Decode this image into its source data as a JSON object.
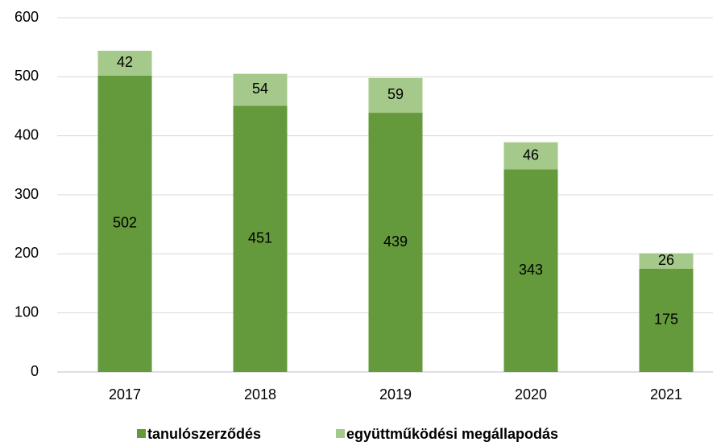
{
  "chart_data": {
    "type": "stacked_bar",
    "categories": [
      "2017",
      "2018",
      "2019",
      "2020",
      "2021"
    ],
    "series": [
      {
        "name": "tanulószerződés",
        "color": "#64993c",
        "values": [
          502,
          451,
          439,
          343,
          175
        ]
      },
      {
        "name": "együttműködési megállapodás",
        "color": "#a5c98a",
        "values": [
          42,
          54,
          59,
          46,
          26
        ]
      }
    ],
    "ylim": [
      0,
      600
    ],
    "yticks": [
      0,
      100,
      200,
      300,
      400,
      500,
      600
    ],
    "grid": true,
    "legend": "bottom"
  }
}
